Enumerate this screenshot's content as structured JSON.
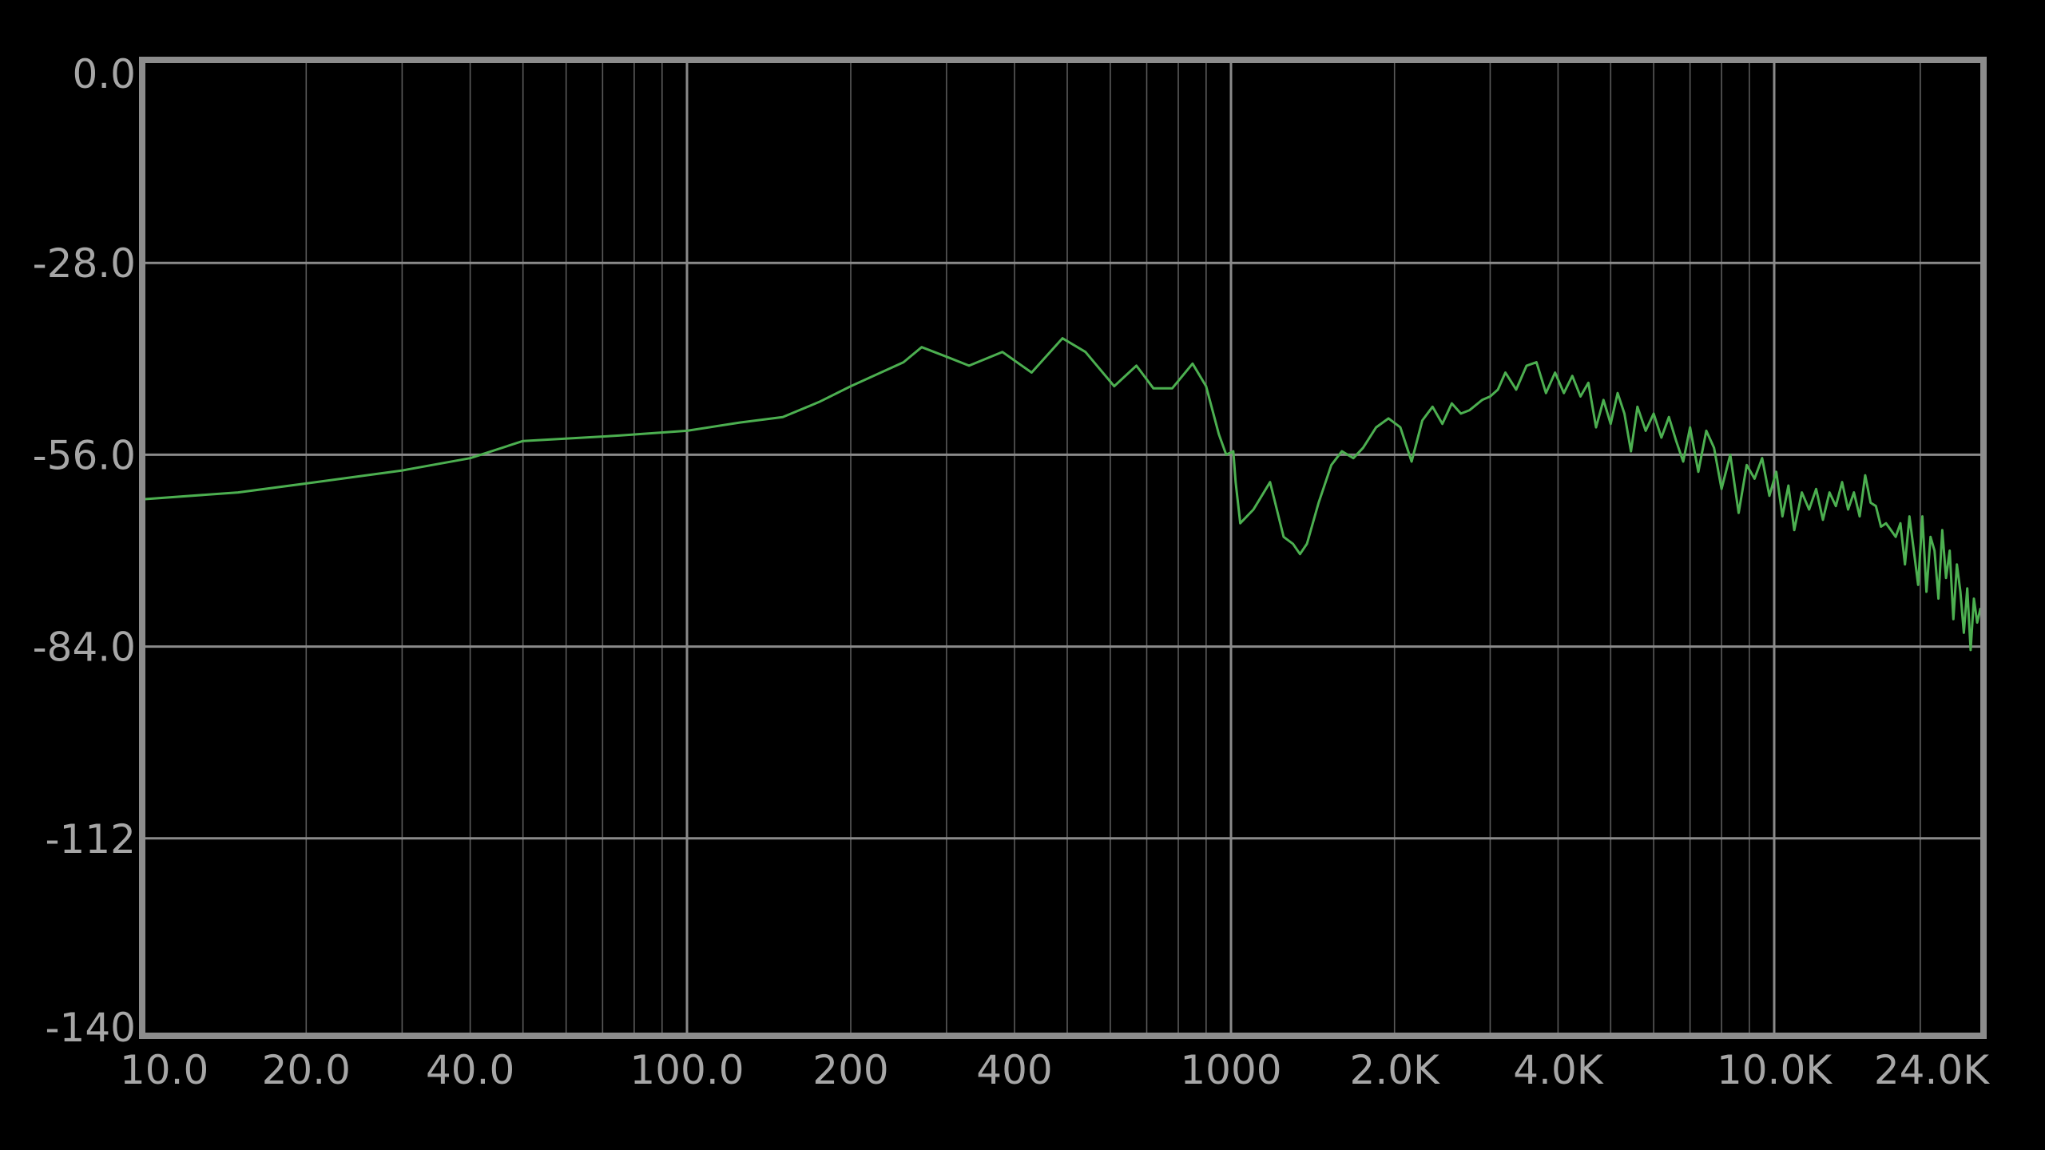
{
  "chart_data": {
    "type": "line",
    "x_scale": "log",
    "grid": true,
    "x_ticks": [
      {
        "value": 10,
        "label": "10.0"
      },
      {
        "value": 20,
        "label": "20.0"
      },
      {
        "value": 40,
        "label": "40.0"
      },
      {
        "value": 100,
        "label": "100.0"
      },
      {
        "value": 200,
        "label": "200"
      },
      {
        "value": 400,
        "label": "400"
      },
      {
        "value": 1000,
        "label": "1000"
      },
      {
        "value": 2000,
        "label": "2.0K"
      },
      {
        "value": 4000,
        "label": "4.0K"
      },
      {
        "value": 10000,
        "label": "10.0K"
      },
      {
        "value": 24000,
        "label": "24.0K"
      }
    ],
    "y_ticks": [
      {
        "value": 0,
        "label": "0.0"
      },
      {
        "value": -28,
        "label": "-28.0"
      },
      {
        "value": -56,
        "label": "-56.0"
      },
      {
        "value": -84,
        "label": "-84.0"
      },
      {
        "value": -112,
        "label": "-112"
      },
      {
        "value": -140,
        "label": "-140"
      }
    ],
    "xlim": [
      10,
      27000
    ],
    "ylim": [
      -140,
      0
    ],
    "series": [
      {
        "color": "#4caf50",
        "points": [
          [
            10,
            -62.5
          ],
          [
            15,
            -61.5
          ],
          [
            20,
            -60.2
          ],
          [
            30,
            -58.3
          ],
          [
            40,
            -56.5
          ],
          [
            50,
            -54.0
          ],
          [
            75,
            -53.2
          ],
          [
            100,
            -52.5
          ],
          [
            125,
            -51.3
          ],
          [
            150,
            -50.5
          ],
          [
            175,
            -48.3
          ],
          [
            200,
            -46.0
          ],
          [
            250,
            -42.5
          ],
          [
            270,
            -40.3
          ],
          [
            300,
            -41.7
          ],
          [
            330,
            -43.0
          ],
          [
            380,
            -41.0
          ],
          [
            430,
            -44.0
          ],
          [
            490,
            -39.0
          ],
          [
            540,
            -41.0
          ],
          [
            610,
            -46.0
          ],
          [
            670,
            -43.0
          ],
          [
            720,
            -46.3
          ],
          [
            780,
            -46.3
          ],
          [
            850,
            -42.7
          ],
          [
            900,
            -46.0
          ],
          [
            950,
            -53.0
          ],
          [
            980,
            -56.0
          ],
          [
            1010,
            -55.5
          ],
          [
            1020,
            -60.0
          ],
          [
            1040,
            -66.0
          ],
          [
            1100,
            -64.0
          ],
          [
            1180,
            -60.0
          ],
          [
            1250,
            -68.0
          ],
          [
            1300,
            -69.0
          ],
          [
            1340,
            -70.5
          ],
          [
            1380,
            -69.0
          ],
          [
            1450,
            -63.0
          ],
          [
            1530,
            -57.5
          ],
          [
            1600,
            -55.5
          ],
          [
            1680,
            -56.5
          ],
          [
            1750,
            -55.0
          ],
          [
            1850,
            -52.0
          ],
          [
            1950,
            -50.7
          ],
          [
            2050,
            -52.0
          ],
          [
            2150,
            -57.0
          ],
          [
            2250,
            -51.0
          ],
          [
            2350,
            -49.0
          ],
          [
            2450,
            -51.5
          ],
          [
            2550,
            -48.5
          ],
          [
            2650,
            -50.0
          ],
          [
            2750,
            -49.5
          ],
          [
            2900,
            -48.0
          ],
          [
            3000,
            -47.5
          ],
          [
            3100,
            -46.5
          ],
          [
            3200,
            -44.0
          ],
          [
            3350,
            -46.5
          ],
          [
            3500,
            -43.0
          ],
          [
            3650,
            -42.5
          ],
          [
            3800,
            -47.0
          ],
          [
            3950,
            -44.0
          ],
          [
            4100,
            -47.0
          ],
          [
            4250,
            -44.5
          ],
          [
            4400,
            -47.5
          ],
          [
            4550,
            -45.5
          ],
          [
            4700,
            -52.0
          ],
          [
            4850,
            -48.0
          ],
          [
            5000,
            -51.5
          ],
          [
            5150,
            -47.0
          ],
          [
            5300,
            -50.0
          ],
          [
            5450,
            -55.5
          ],
          [
            5600,
            -49.0
          ],
          [
            5800,
            -52.5
          ],
          [
            6000,
            -50.0
          ],
          [
            6200,
            -53.5
          ],
          [
            6400,
            -50.5
          ],
          [
            6600,
            -54.0
          ],
          [
            6800,
            -57.0
          ],
          [
            7000,
            -52.0
          ],
          [
            7250,
            -58.5
          ],
          [
            7500,
            -52.5
          ],
          [
            7750,
            -55.0
          ],
          [
            8000,
            -61.0
          ],
          [
            8300,
            -56.0
          ],
          [
            8600,
            -64.5
          ],
          [
            8900,
            -57.5
          ],
          [
            9200,
            -59.5
          ],
          [
            9500,
            -56.5
          ],
          [
            9800,
            -62.0
          ],
          [
            10100,
            -58.5
          ],
          [
            10400,
            -65.0
          ],
          [
            10700,
            -60.5
          ],
          [
            11000,
            -67.0
          ],
          [
            11400,
            -61.5
          ],
          [
            11800,
            -64.0
          ],
          [
            12200,
            -61.0
          ],
          [
            12600,
            -65.5
          ],
          [
            13000,
            -61.5
          ],
          [
            13400,
            -63.5
          ],
          [
            13800,
            -60.0
          ],
          [
            14200,
            -64.0
          ],
          [
            14600,
            -61.5
          ],
          [
            15000,
            -65.0
          ],
          [
            15400,
            -59.0
          ],
          [
            15800,
            -63.0
          ],
          [
            16200,
            -63.5
          ],
          [
            16600,
            -66.5
          ],
          [
            17000,
            -66.0
          ],
          [
            17400,
            -67.0
          ],
          [
            17800,
            -68.0
          ],
          [
            18200,
            -66.0
          ],
          [
            18600,
            -72.0
          ],
          [
            19000,
            -65.0
          ],
          [
            19400,
            -70.0
          ],
          [
            19800,
            -75.0
          ],
          [
            20200,
            -65.0
          ],
          [
            20600,
            -76.0
          ],
          [
            21000,
            -68.0
          ],
          [
            21400,
            -70.0
          ],
          [
            21800,
            -77.0
          ],
          [
            22200,
            -67.0
          ],
          [
            22600,
            -74.0
          ],
          [
            23000,
            -70.0
          ],
          [
            23400,
            -80.0
          ],
          [
            23800,
            -72.0
          ],
          [
            24200,
            -76.0
          ],
          [
            24600,
            -82.0
          ],
          [
            25000,
            -75.5
          ],
          [
            25400,
            -84.5
          ],
          [
            25800,
            -77.0
          ],
          [
            26200,
            -80.5
          ],
          [
            26600,
            -78.5
          ],
          [
            27000,
            -80.0
          ]
        ]
      }
    ]
  }
}
